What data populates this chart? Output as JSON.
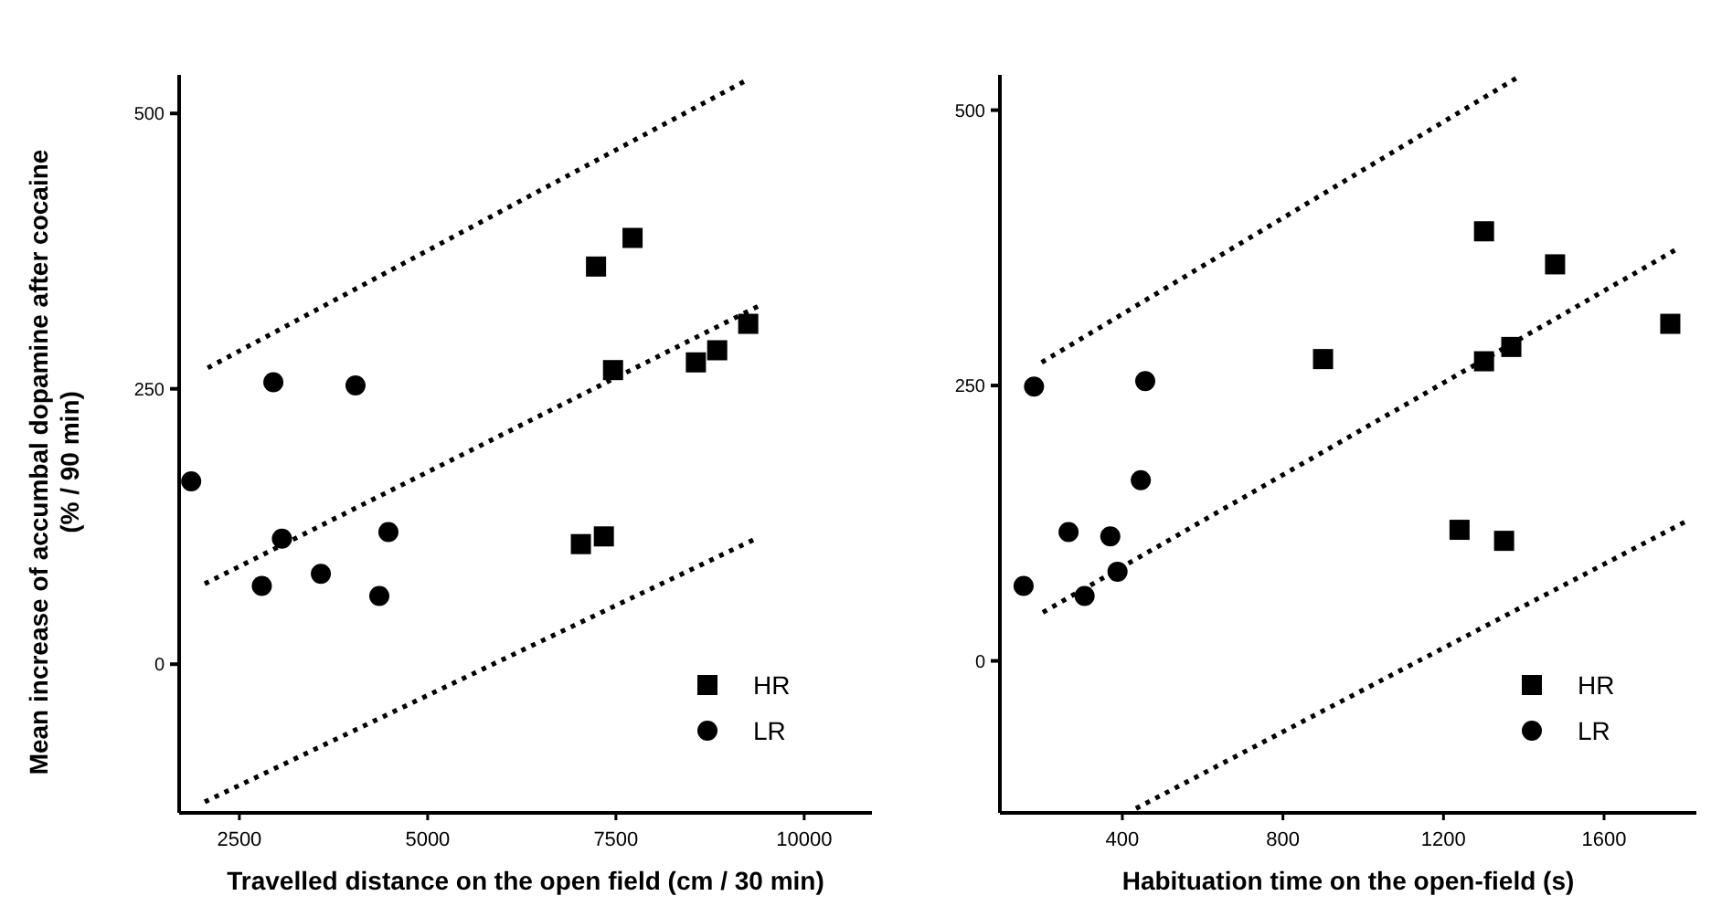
{
  "chart_data": [
    {
      "type": "scatter",
      "ylabel": "Mean increase of accumbal dopamine after cocaine\n(% / 90 min)",
      "xlabel": "Travelled distance on the open field (cm / 30 min)",
      "xlim": [
        1700,
        10900
      ],
      "xticks": [
        2500,
        5000,
        7500,
        10000
      ],
      "ylim": [
        -135,
        535
      ],
      "yticks": [
        0,
        250,
        500
      ],
      "legend": "bottom right",
      "grid": false,
      "series": [
        {
          "name": "HR",
          "color": "#000000",
          "marker": "square",
          "x": [
            7236,
            7721,
            7462,
            8562,
            8845,
            9257,
            7035,
            7340
          ],
          "values": [
            361,
            387,
            267,
            274,
            285,
            309,
            109,
            116
          ]
        },
        {
          "name": "LR",
          "color": "#000000",
          "marker": "circle",
          "x": [
            1860,
            2951,
            4042,
            3065,
            4479,
            2798,
            3582,
            4358
          ],
          "values": [
            166,
            256,
            253,
            114,
            120,
            71,
            82,
            62
          ]
        },
        {
          "type": "line",
          "color": "#000000",
          "marker": "none",
          "line_style": "dotted",
          "x": [
            2080,
            9230
          ],
          "values": [
            269,
            530
          ]
        },
        {
          "type": "line",
          "color": "#000000",
          "marker": "none",
          "line_style": "dotted",
          "x": [
            2040,
            9390
          ],
          "values": [
            73,
            325
          ]
        },
        {
          "type": "line",
          "color": "#000000",
          "marker": "none",
          "line_style": "dotted",
          "x": [
            2040,
            9390
          ],
          "values": [
            -125,
            115
          ]
        }
      ]
    },
    {
      "type": "scatter",
      "xlabel": "Habituation time on the open-field (s)",
      "xlim": [
        95,
        1830
      ],
      "xticks": [
        400,
        800,
        1200,
        1600
      ],
      "ylim": [
        -138,
        532
      ],
      "yticks": [
        0,
        250,
        500
      ],
      "legend": "bottom right",
      "grid": false,
      "series": [
        {
          "name": "HR",
          "color": "#000000",
          "marker": "square",
          "x": [
            1301,
            1478,
            1765,
            900,
            1301,
            1369,
            1240,
            1351
          ],
          "values": [
            390,
            360,
            306,
            274,
            272,
            285,
            119,
            109
          ]
        },
        {
          "name": "LR",
          "color": "#000000",
          "marker": "circle",
          "x": [
            180,
            457,
            446,
            266,
            370,
            388,
            154,
            306
          ],
          "values": [
            249,
            254,
            164,
            117,
            113,
            81,
            68,
            59
          ]
        },
        {
          "type": "line",
          "color": "#000000",
          "marker": "none",
          "line_style": "dotted",
          "x": [
            199,
            1386
          ],
          "values": [
            271,
            530
          ]
        },
        {
          "type": "line",
          "color": "#000000",
          "marker": "none",
          "line_style": "dotted",
          "x": [
            202,
            1787
          ],
          "values": [
            44,
            375
          ]
        },
        {
          "type": "line",
          "color": "#000000",
          "marker": "none",
          "line_style": "dotted",
          "x": [
            434,
            1806
          ],
          "values": [
            -134,
            127
          ]
        }
      ]
    }
  ]
}
